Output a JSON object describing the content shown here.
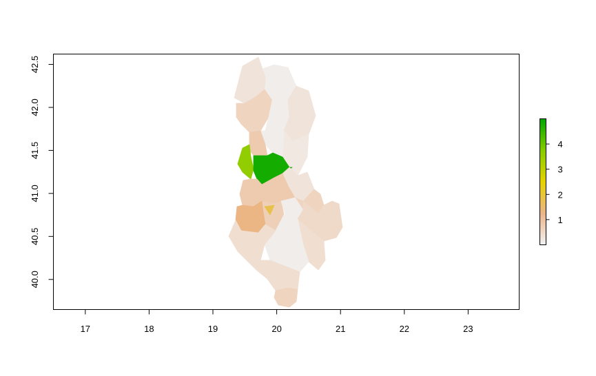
{
  "chart_data": {
    "type": "choropleth-map",
    "title": "",
    "xlabel": "",
    "ylabel": "",
    "xlim": [
      16.5,
      23.8
    ],
    "ylim": [
      39.65,
      42.62
    ],
    "x_ticks": [
      "17",
      "18",
      "19",
      "20",
      "21",
      "22",
      "23"
    ],
    "y_ticks": [
      "40.0",
      "40.5",
      "41.0",
      "41.5",
      "42.0",
      "42.5"
    ],
    "legend": {
      "placement": "right",
      "range": [
        0,
        5
      ],
      "ticks": [
        "1",
        "2",
        "3",
        "4"
      ],
      "colors": [
        "#f2f2f2",
        "#ebb48a",
        "#e5d200",
        "#86cc00",
        "#00a600"
      ]
    },
    "region_values": [
      {
        "lon": 19.7,
        "lat": 42.35,
        "value": 0.3
      },
      {
        "lon": 20.0,
        "lat": 42.3,
        "value": 0.1
      },
      {
        "lon": 19.8,
        "lat": 41.95,
        "value": 0.6
      },
      {
        "lon": 20.05,
        "lat": 41.95,
        "value": 0.1
      },
      {
        "lon": 20.3,
        "lat": 41.9,
        "value": 0.3
      },
      {
        "lon": 20.4,
        "lat": 41.6,
        "value": 0.2
      },
      {
        "lon": 20.1,
        "lat": 41.6,
        "value": 0.1
      },
      {
        "lon": 19.75,
        "lat": 41.6,
        "value": 0.8
      },
      {
        "lon": 19.58,
        "lat": 41.4,
        "value": 3.6
      },
      {
        "lon": 19.88,
        "lat": 41.3,
        "value": 4.8
      },
      {
        "lon": 20.35,
        "lat": 41.25,
        "value": 0.3
      },
      {
        "lon": 20.4,
        "lat": 41.0,
        "value": 0.6
      },
      {
        "lon": 19.75,
        "lat": 41.0,
        "value": 0.8
      },
      {
        "lon": 19.9,
        "lat": 40.85,
        "value": 0.7
      },
      {
        "lon": 19.9,
        "lat": 40.82,
        "value": 1.8
      },
      {
        "lon": 19.5,
        "lat": 40.75,
        "value": 1.3
      },
      {
        "lon": 20.2,
        "lat": 40.75,
        "value": 0.1
      },
      {
        "lon": 20.6,
        "lat": 40.8,
        "value": 0.5
      },
      {
        "lon": 20.55,
        "lat": 40.5,
        "value": 0.4
      },
      {
        "lon": 20.2,
        "lat": 40.4,
        "value": 0.1
      },
      {
        "lon": 19.6,
        "lat": 40.35,
        "value": 0.4
      },
      {
        "lon": 19.9,
        "lat": 40.2,
        "value": 0.4
      },
      {
        "lon": 20.15,
        "lat": 39.98,
        "value": 0.4
      },
      {
        "lon": 20.05,
        "lat": 39.8,
        "value": 0.6
      }
    ]
  }
}
